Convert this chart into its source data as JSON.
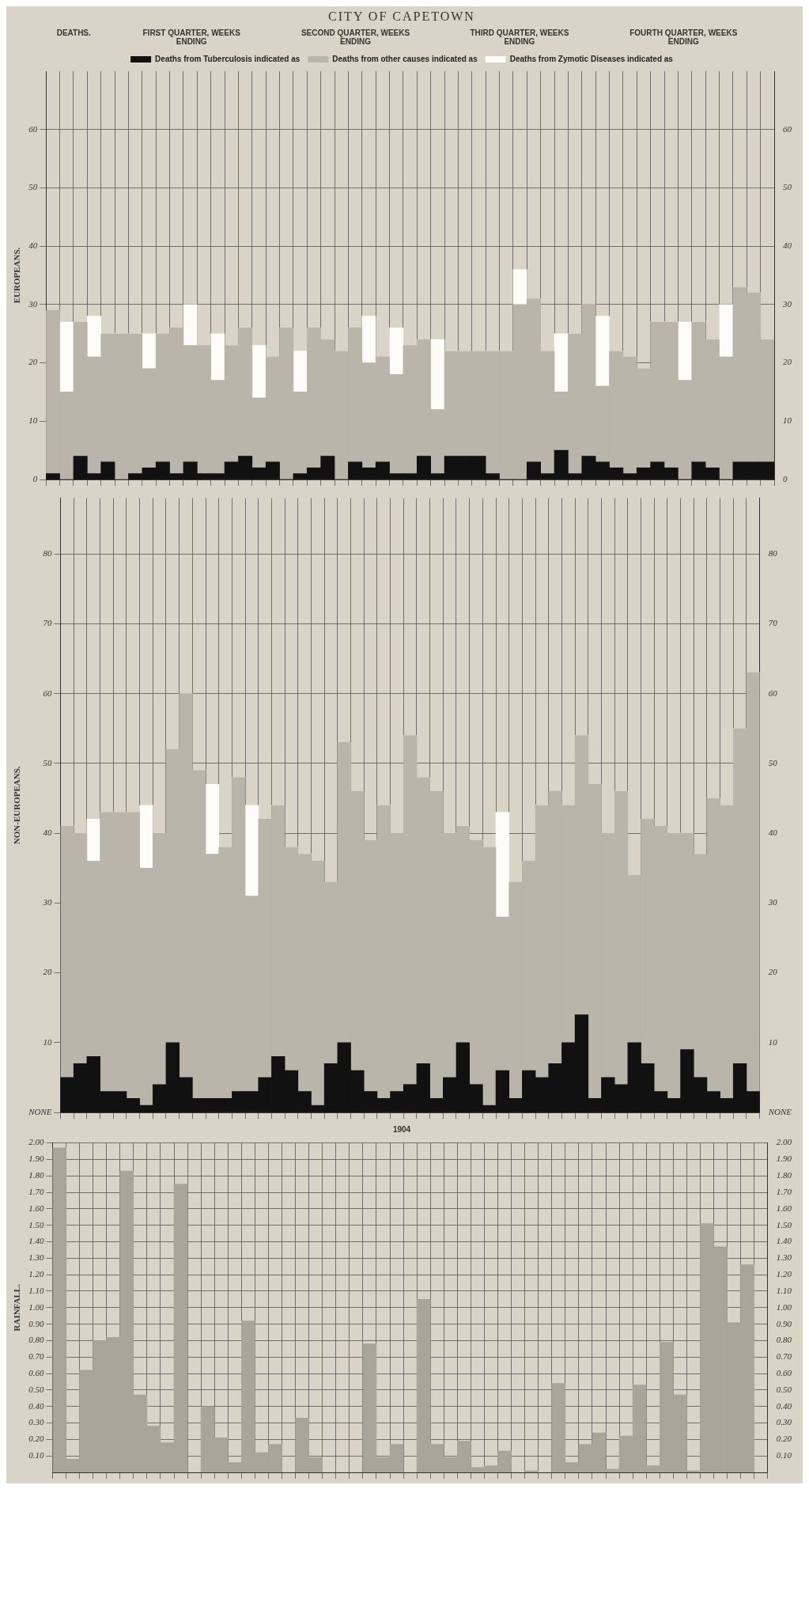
{
  "chart_data": [
    {
      "type": "bar",
      "title": "CITY OF CAPETOWN",
      "ylabel": "EUROPEANS.",
      "annotations": [
        "DEATHS.",
        "FIRST QUARTER, WEEKS ENDING",
        "SECOND QUARTER, WEEKS ENDING",
        "THIRD QUARTER, WEEKS ENDING",
        "FOURTH QUARTER, WEEKS ENDING"
      ],
      "stacked": true,
      "legend": "top",
      "grid": true,
      "categories": [
        null,
        null,
        null,
        null,
        null,
        null,
        null,
        null,
        null,
        null,
        null,
        null,
        null,
        null,
        null,
        null,
        null,
        null,
        null,
        null,
        null,
        null,
        null,
        null,
        null,
        null,
        null,
        null,
        null,
        null,
        null,
        null,
        null,
        null,
        null,
        null,
        null,
        null,
        null,
        null,
        null,
        null,
        null,
        null,
        null,
        null,
        null,
        null,
        null,
        null,
        null,
        null,
        null
      ],
      "series": [
        {
          "name": "Deaths from Tuberculosis indicated as",
          "color": "#111111",
          "values": [
            1,
            0,
            4,
            1,
            3,
            0,
            1,
            2,
            3,
            1,
            3,
            1,
            1,
            3,
            4,
            2,
            3,
            0,
            1,
            2,
            4,
            0,
            3,
            2,
            3,
            1,
            1,
            4,
            1,
            4,
            4,
            4,
            1,
            0,
            0,
            3,
            1,
            5,
            1,
            4,
            3,
            2,
            1,
            2,
            3,
            2,
            0,
            3,
            2,
            0,
            3,
            3,
            3
          ]
        },
        {
          "name": "Deaths from other causes indicated as",
          "color": "#b9b5ab",
          "values": [
            28,
            15,
            23,
            20,
            22,
            25,
            24,
            17,
            22,
            25,
            20,
            22,
            16,
            20,
            22,
            12,
            18,
            26,
            14,
            24,
            20,
            22,
            23,
            18,
            18,
            17,
            22,
            20,
            11,
            18,
            18,
            18,
            21,
            22,
            30,
            28,
            21,
            10,
            24,
            26,
            13,
            20,
            20,
            17,
            24,
            25,
            17,
            24,
            22,
            21,
            30,
            29,
            21
          ]
        },
        {
          "name": "Deaths from Zymotic Diseases indicated as",
          "color": "#fdfcf8",
          "values": [
            0,
            12,
            0,
            7,
            0,
            0,
            0,
            6,
            0,
            0,
            7,
            0,
            8,
            0,
            0,
            9,
            0,
            0,
            7,
            0,
            0,
            0,
            0,
            8,
            0,
            8,
            0,
            0,
            12,
            0,
            0,
            0,
            0,
            0,
            6,
            0,
            0,
            10,
            0,
            0,
            12,
            0,
            0,
            0,
            0,
            0,
            10,
            0,
            0,
            9,
            0,
            0,
            0
          ]
        }
      ],
      "ylim": [
        0,
        70
      ],
      "yticks": [
        0,
        10,
        20,
        30,
        40,
        50,
        60
      ],
      "y2lim": [
        0,
        70
      ],
      "y2ticks": [
        0,
        10,
        20,
        30,
        40,
        50,
        60
      ]
    },
    {
      "type": "bar",
      "ylabel": "NON-EUROPEANS.",
      "stacked": true,
      "grid": true,
      "categories": [
        null,
        null,
        null,
        null,
        null,
        null,
        null,
        null,
        null,
        null,
        null,
        null,
        null,
        null,
        null,
        null,
        null,
        null,
        null,
        null,
        null,
        null,
        null,
        null,
        null,
        null,
        null,
        null,
        null,
        null,
        null,
        null,
        null,
        null,
        null,
        null,
        null,
        null,
        null,
        null,
        null,
        null,
        null,
        null,
        null,
        null,
        null,
        null,
        null,
        null,
        null,
        null,
        null
      ],
      "series": [
        {
          "color": "#111111",
          "values": [
            5,
            7,
            8,
            3,
            3,
            2,
            1,
            4,
            10,
            5,
            2,
            2,
            2,
            3,
            3,
            5,
            8,
            6,
            3,
            1,
            7,
            10,
            6,
            3,
            2,
            3,
            4,
            7,
            2,
            5,
            10,
            4,
            1,
            6,
            2,
            6,
            5,
            7,
            10,
            14,
            2,
            5,
            4,
            10,
            7,
            3,
            2,
            9,
            5,
            3,
            2,
            7,
            3
          ]
        },
        {
          "color": "#b9b5ab",
          "values": [
            36,
            33,
            28,
            40,
            40,
            41,
            34,
            36,
            42,
            55,
            47,
            35,
            36,
            45,
            28,
            37,
            36,
            32,
            34,
            35,
            26,
            43,
            40,
            36,
            42,
            37,
            50,
            41,
            44,
            35,
            31,
            35,
            37,
            22,
            31,
            30,
            39,
            39,
            34,
            40,
            45,
            35,
            42,
            24,
            35,
            38,
            38,
            31,
            32,
            42,
            42,
            48,
            60
          ]
        },
        {
          "color": "#fdfcf8",
          "values": [
            0,
            0,
            6,
            0,
            0,
            0,
            9,
            0,
            0,
            0,
            0,
            10,
            0,
            0,
            13,
            0,
            0,
            0,
            0,
            0,
            0,
            0,
            0,
            0,
            0,
            0,
            0,
            0,
            0,
            0,
            0,
            0,
            0,
            15,
            0,
            0,
            0,
            0,
            0,
            0,
            0,
            0,
            0,
            0,
            0,
            0,
            0,
            0,
            0,
            0,
            0,
            0,
            0
          ]
        }
      ],
      "ylim": [
        0,
        88
      ],
      "yticks": [
        {
          "value": 0,
          "label": "NONE"
        },
        10,
        20,
        30,
        40,
        50,
        60,
        70,
        80
      ],
      "y2lim": [
        0,
        88
      ],
      "y2ticks": [
        {
          "value": 0,
          "label": "NONE"
        },
        10,
        20,
        30,
        40,
        50,
        60,
        70,
        80
      ]
    },
    {
      "type": "bar",
      "ylabel": "RAINFALL.",
      "annotations": [
        "1904"
      ],
      "grid": true,
      "categories": [
        null,
        null,
        null,
        null,
        null,
        null,
        null,
        null,
        null,
        null,
        null,
        null,
        null,
        null,
        null,
        null,
        null,
        null,
        null,
        null,
        null,
        null,
        null,
        null,
        null,
        null,
        null,
        null,
        null,
        null,
        null,
        null,
        null,
        null,
        null,
        null,
        null,
        null,
        null,
        null,
        null,
        null,
        null,
        null,
        null,
        null,
        null,
        null,
        null,
        null,
        null,
        null,
        null
      ],
      "series": [
        {
          "color": "#a9a59b",
          "values": [
            1.97,
            0.08,
            0.62,
            0.8,
            0.82,
            1.83,
            0.47,
            0.28,
            0.18,
            1.75,
            0,
            0.4,
            0.21,
            0.06,
            0.92,
            0.12,
            0.17,
            0,
            0.33,
            0.09,
            0,
            0,
            0,
            0.78,
            0.09,
            0.17,
            0,
            1.05,
            0.17,
            0.09,
            0.19,
            0.03,
            0.04,
            0.13,
            0,
            0.01,
            0,
            0.54,
            0.06,
            0.17,
            0.24,
            0.02,
            0.22,
            0.53,
            0.04,
            0.79,
            0.47,
            0.01,
            1.51,
            1.37,
            0.91,
            1.26,
            0
          ]
        }
      ],
      "ylim": [
        0,
        2
      ],
      "yticks": [
        {
          "value": 0.1,
          "label": "0.10"
        },
        {
          "value": 0.2,
          "label": "0.20"
        },
        {
          "value": 0.3,
          "label": "0.30"
        },
        {
          "value": 0.4,
          "label": "0.40"
        },
        {
          "value": 0.5,
          "label": "0.50"
        },
        {
          "value": 0.6,
          "label": "0.60"
        },
        {
          "value": 0.7,
          "label": "0.70"
        },
        {
          "value": 0.8,
          "label": "0.80"
        },
        {
          "value": 0.9,
          "label": "0.90"
        },
        {
          "value": 1,
          "label": "1.00"
        },
        {
          "value": 1.1,
          "label": "1.10"
        },
        {
          "value": 1.2,
          "label": "1.20"
        },
        {
          "value": 1.3,
          "label": "1.30"
        },
        {
          "value": 1.4,
          "label": "1.40"
        },
        {
          "value": 1.5,
          "label": "1.50"
        },
        {
          "value": 1.6,
          "label": "1.60"
        },
        {
          "value": 1.7,
          "label": "1.70"
        },
        {
          "value": 1.8,
          "label": "1.80"
        },
        {
          "value": 1.9,
          "label": "1.90"
        },
        {
          "value": 2,
          "label": "2.00"
        }
      ],
      "y2lim": [
        0,
        2
      ],
      "y2ticks": [
        {
          "value": 0.1,
          "label": "0.10"
        },
        {
          "value": 0.2,
          "label": "0.20"
        },
        {
          "value": 0.3,
          "label": "0.30"
        },
        {
          "value": 0.4,
          "label": "0.40"
        },
        {
          "value": 0.5,
          "label": "0.50"
        },
        {
          "value": 0.6,
          "label": "0.60"
        },
        {
          "value": 0.7,
          "label": "0.70"
        },
        {
          "value": 0.8,
          "label": "0.80"
        },
        {
          "value": 0.9,
          "label": "0.90"
        },
        {
          "value": 1,
          "label": "1.00"
        },
        {
          "value": 1.1,
          "label": "1.10"
        },
        {
          "value": 1.2,
          "label": "1.20"
        },
        {
          "value": 1.3,
          "label": "1.30"
        },
        {
          "value": 1.4,
          "label": "1.40"
        },
        {
          "value": 1.5,
          "label": "1.50"
        },
        {
          "value": 1.6,
          "label": "1.60"
        },
        {
          "value": 1.7,
          "label": "1.70"
        },
        {
          "value": 1.8,
          "label": "1.80"
        },
        {
          "value": 1.9,
          "label": "1.90"
        },
        {
          "value": 2,
          "label": "2.00"
        }
      ]
    }
  ]
}
